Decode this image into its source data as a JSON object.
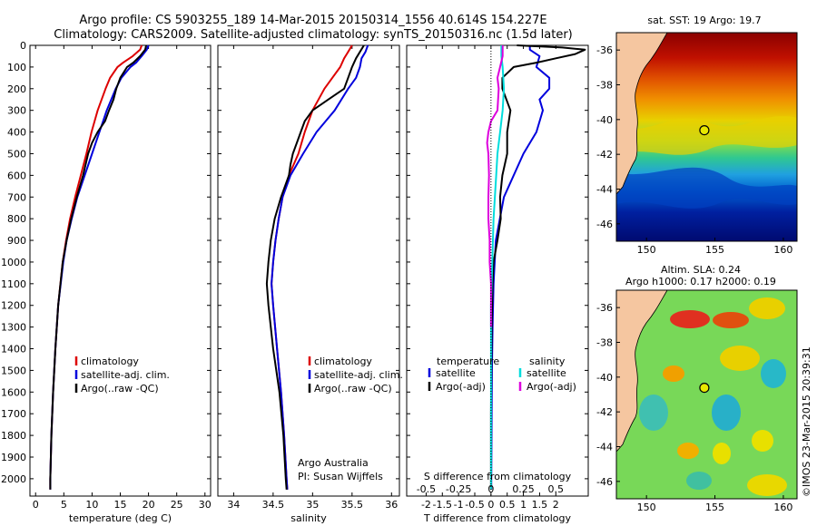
{
  "header": {
    "line1": "Argo profile: CS 5903255_189 14-Mar-2015 20150314_1556 40.614S 154.227E",
    "line2": "Climatology: CARS2009. Satellite-adjusted climatology: synTS_20150316.nc (1.5d later)"
  },
  "colors": {
    "climatology": "#dd0000",
    "satellite": "#0000dd",
    "argo": "#000000",
    "sat_salinity": "#00dddd",
    "argo_salinity": "#dd00dd"
  },
  "chart_data": [
    {
      "type": "line",
      "id": "temperature",
      "xlabel": "temperature (deg C)",
      "xlim": [
        -1,
        31
      ],
      "ylim": [
        2080,
        0
      ],
      "xticks": [
        "0",
        "5",
        "10",
        "15",
        "20",
        "25",
        "30"
      ],
      "yticks": [
        "0",
        "100",
        "200",
        "300",
        "400",
        "500",
        "600",
        "700",
        "800",
        "900",
        "1000",
        "1100",
        "1200",
        "1300",
        "1400",
        "1500",
        "1600",
        "1700",
        "1800",
        "1900",
        "2000"
      ],
      "legend": [
        "climatology",
        "satellite-adj. clim.",
        "Argo(..raw -QC)"
      ],
      "series": [
        {
          "name": "climatology",
          "depth": [
            0,
            20,
            50,
            80,
            100,
            150,
            200,
            300,
            400,
            500,
            600,
            700,
            800,
            900,
            1000,
            1200,
            1400,
            1600,
            1800,
            2000,
            2050
          ],
          "values": [
            18.8,
            18.5,
            17.2,
            15.5,
            14.5,
            13.2,
            12.4,
            11.0,
            9.9,
            9.0,
            8.0,
            7.0,
            6.1,
            5.4,
            4.8,
            4.0,
            3.5,
            3.1,
            2.8,
            2.6,
            2.6
          ]
        },
        {
          "name": "satellite-adj. clim.",
          "depth": [
            0,
            20,
            50,
            80,
            100,
            150,
            200,
            300,
            400,
            500,
            600,
            700,
            800,
            900,
            1000,
            1200,
            1400,
            1600,
            1800,
            2000,
            2050
          ],
          "values": [
            20.0,
            19.7,
            18.8,
            17.8,
            16.8,
            15.2,
            14.2,
            12.6,
            11.3,
            10.0,
            8.7,
            7.4,
            6.4,
            5.5,
            4.9,
            4.0,
            3.5,
            3.1,
            2.8,
            2.6,
            2.6
          ]
        },
        {
          "name": "Argo(..raw -QC)",
          "depth": [
            0,
            20,
            50,
            80,
            100,
            150,
            200,
            250,
            300,
            350,
            400,
            450,
            500,
            600,
            700,
            800,
            900,
            1000,
            1200,
            1400,
            1600,
            1800,
            2000,
            2050
          ],
          "values": [
            19.6,
            19.4,
            18.5,
            17.3,
            16.2,
            15.0,
            14.3,
            13.8,
            13.0,
            12.3,
            11.0,
            10.0,
            9.3,
            8.4,
            7.3,
            6.3,
            5.5,
            4.8,
            4.0,
            3.5,
            3.1,
            2.8,
            2.6,
            2.6
          ]
        }
      ]
    },
    {
      "type": "line",
      "id": "salinity",
      "xlabel": "salinity",
      "xlim": [
        33.8,
        36.1
      ],
      "ylim": [
        2080,
        0
      ],
      "xticks": [
        "34",
        "34.5",
        "35",
        "35.5",
        "36"
      ],
      "legend": [
        "climatology",
        "satellite-adj. clim.",
        "Argo(..raw -QC)"
      ],
      "annotation": [
        "Argo Australia",
        "PI: Susan Wijffels"
      ],
      "series": [
        {
          "name": "climatology",
          "depth": [
            0,
            30,
            60,
            100,
            150,
            200,
            300,
            400,
            500,
            600,
            700,
            800,
            900,
            1000,
            1100,
            1200,
            1400,
            1600,
            1800,
            2000,
            2050
          ],
          "values": [
            35.5,
            35.45,
            35.4,
            35.35,
            35.25,
            35.15,
            35.0,
            34.9,
            34.82,
            34.7,
            34.62,
            34.57,
            34.53,
            34.5,
            34.48,
            34.5,
            34.55,
            34.6,
            34.64,
            34.67,
            34.68
          ]
        },
        {
          "name": "satellite-adj. clim.",
          "depth": [
            0,
            30,
            60,
            100,
            150,
            200,
            300,
            400,
            500,
            600,
            700,
            800,
            900,
            1000,
            1100,
            1200,
            1400,
            1600,
            1800,
            2000,
            2050
          ],
          "values": [
            35.7,
            35.67,
            35.62,
            35.6,
            35.55,
            35.45,
            35.28,
            35.05,
            34.88,
            34.72,
            34.62,
            34.57,
            34.53,
            34.5,
            34.48,
            34.5,
            34.55,
            34.6,
            34.64,
            34.67,
            34.68
          ]
        },
        {
          "name": "Argo(..raw -QC)",
          "depth": [
            0,
            30,
            60,
            100,
            150,
            200,
            250,
            300,
            350,
            400,
            450,
            500,
            550,
            600,
            700,
            800,
            900,
            1000,
            1100,
            1200,
            1300,
            1400,
            1600,
            1800,
            2000,
            2050
          ],
          "values": [
            35.65,
            35.6,
            35.55,
            35.5,
            35.45,
            35.4,
            35.2,
            35.0,
            34.9,
            34.85,
            34.8,
            34.75,
            34.72,
            34.7,
            34.6,
            34.52,
            34.47,
            34.44,
            34.42,
            34.44,
            34.47,
            34.5,
            34.58,
            34.63,
            34.66,
            34.67
          ]
        }
      ]
    },
    {
      "type": "line",
      "id": "difference",
      "xlabel_top": "S difference from climatology",
      "xlabel": "T difference from climatology",
      "xlim": [
        -2.6,
        3.0
      ],
      "ylim": [
        2080,
        0
      ],
      "xticks": [
        "-2",
        "-1.5",
        "-1",
        "-0.5",
        "0",
        "0.5",
        "1",
        "1.5",
        "2"
      ],
      "xticks_top": [
        "-0.5",
        "-0.25",
        "0",
        "0.25",
        "0.5"
      ],
      "legend_titles": [
        "temperature",
        "salinity"
      ],
      "legend": [
        "satellite",
        "Argo(-adj)",
        "satellite",
        "Argo(-adj)"
      ],
      "series": [
        {
          "name": "satellite",
          "quantity": "temperature",
          "depth": [
            0,
            20,
            50,
            100,
            150,
            200,
            250,
            300,
            400,
            500,
            700,
            900,
            1100,
            1300,
            1500,
            1700,
            2000,
            2050
          ],
          "values": [
            1.2,
            1.2,
            1.5,
            1.4,
            1.8,
            1.8,
            1.5,
            1.6,
            1.4,
            1.0,
            0.4,
            0.15,
            0.08,
            0.05,
            0.03,
            0.02,
            0.01,
            0.01
          ]
        },
        {
          "name": "Argo(-adj)",
          "quantity": "temperature",
          "depth": [
            0,
            10,
            20,
            40,
            60,
            80,
            100,
            150,
            200,
            300,
            400,
            500,
            600,
            700,
            800,
            900,
            1000,
            1100,
            1300,
            1500,
            1700,
            2000,
            2050
          ],
          "values": [
            0.8,
            2.2,
            2.9,
            2.6,
            2.0,
            1.4,
            0.7,
            0.35,
            0.35,
            0.6,
            0.5,
            0.5,
            0.35,
            0.28,
            0.3,
            0.2,
            0.08,
            0.05,
            0.02,
            0.01,
            0.0,
            0.0,
            0.0
          ]
        },
        {
          "name": "satellite",
          "quantity": "salinity",
          "depth": [
            0,
            50,
            100,
            200,
            300,
            400,
            500,
            600,
            800,
            1000,
            1200,
            1500,
            2000,
            2050
          ],
          "values": [
            0.08,
            0.08,
            0.09,
            0.1,
            0.09,
            0.07,
            0.05,
            0.04,
            0.02,
            0.01,
            0.0,
            0.0,
            0.0,
            0.0
          ]
        },
        {
          "name": "Argo(-adj)",
          "quantity": "salinity",
          "depth": [
            0,
            50,
            100,
            150,
            200,
            300,
            350,
            400,
            450,
            500,
            600,
            700,
            800,
            900,
            1000,
            1100,
            1200,
            1300
          ],
          "values": [
            0.09,
            0.09,
            0.07,
            0.05,
            0.06,
            0.05,
            0.0,
            -0.02,
            -0.03,
            -0.02,
            -0.015,
            -0.02,
            -0.02,
            -0.01,
            -0.01,
            0.0,
            0.0,
            0.0
          ]
        }
      ]
    },
    {
      "type": "heatmap",
      "id": "sst_map",
      "title": "sat. SST: 19 Argo: 19.7",
      "xlim": [
        147.8,
        161
      ],
      "ylim": [
        -47,
        -35
      ],
      "xticks": [
        "150",
        "155",
        "160"
      ],
      "yticks": [
        "-36",
        "-38",
        "-40",
        "-42",
        "-44",
        "-46"
      ],
      "float_position": [
        154.227,
        -40.614
      ]
    },
    {
      "type": "heatmap",
      "id": "sla_map",
      "title_line1": "Altim. SLA: 0.24",
      "title_line2": "Argo h1000: 0.17 h2000: 0.19",
      "xlim": [
        147.8,
        161
      ],
      "ylim": [
        -47,
        -35
      ],
      "xticks": [
        "150",
        "155",
        "160"
      ],
      "yticks": [
        "-36",
        "-38",
        "-40",
        "-42",
        "-44",
        "-46"
      ],
      "float_position": [
        154.227,
        -40.614
      ]
    }
  ],
  "footer": {
    "credit": "©IMOS 23-Mar-2015 20:39:31"
  }
}
